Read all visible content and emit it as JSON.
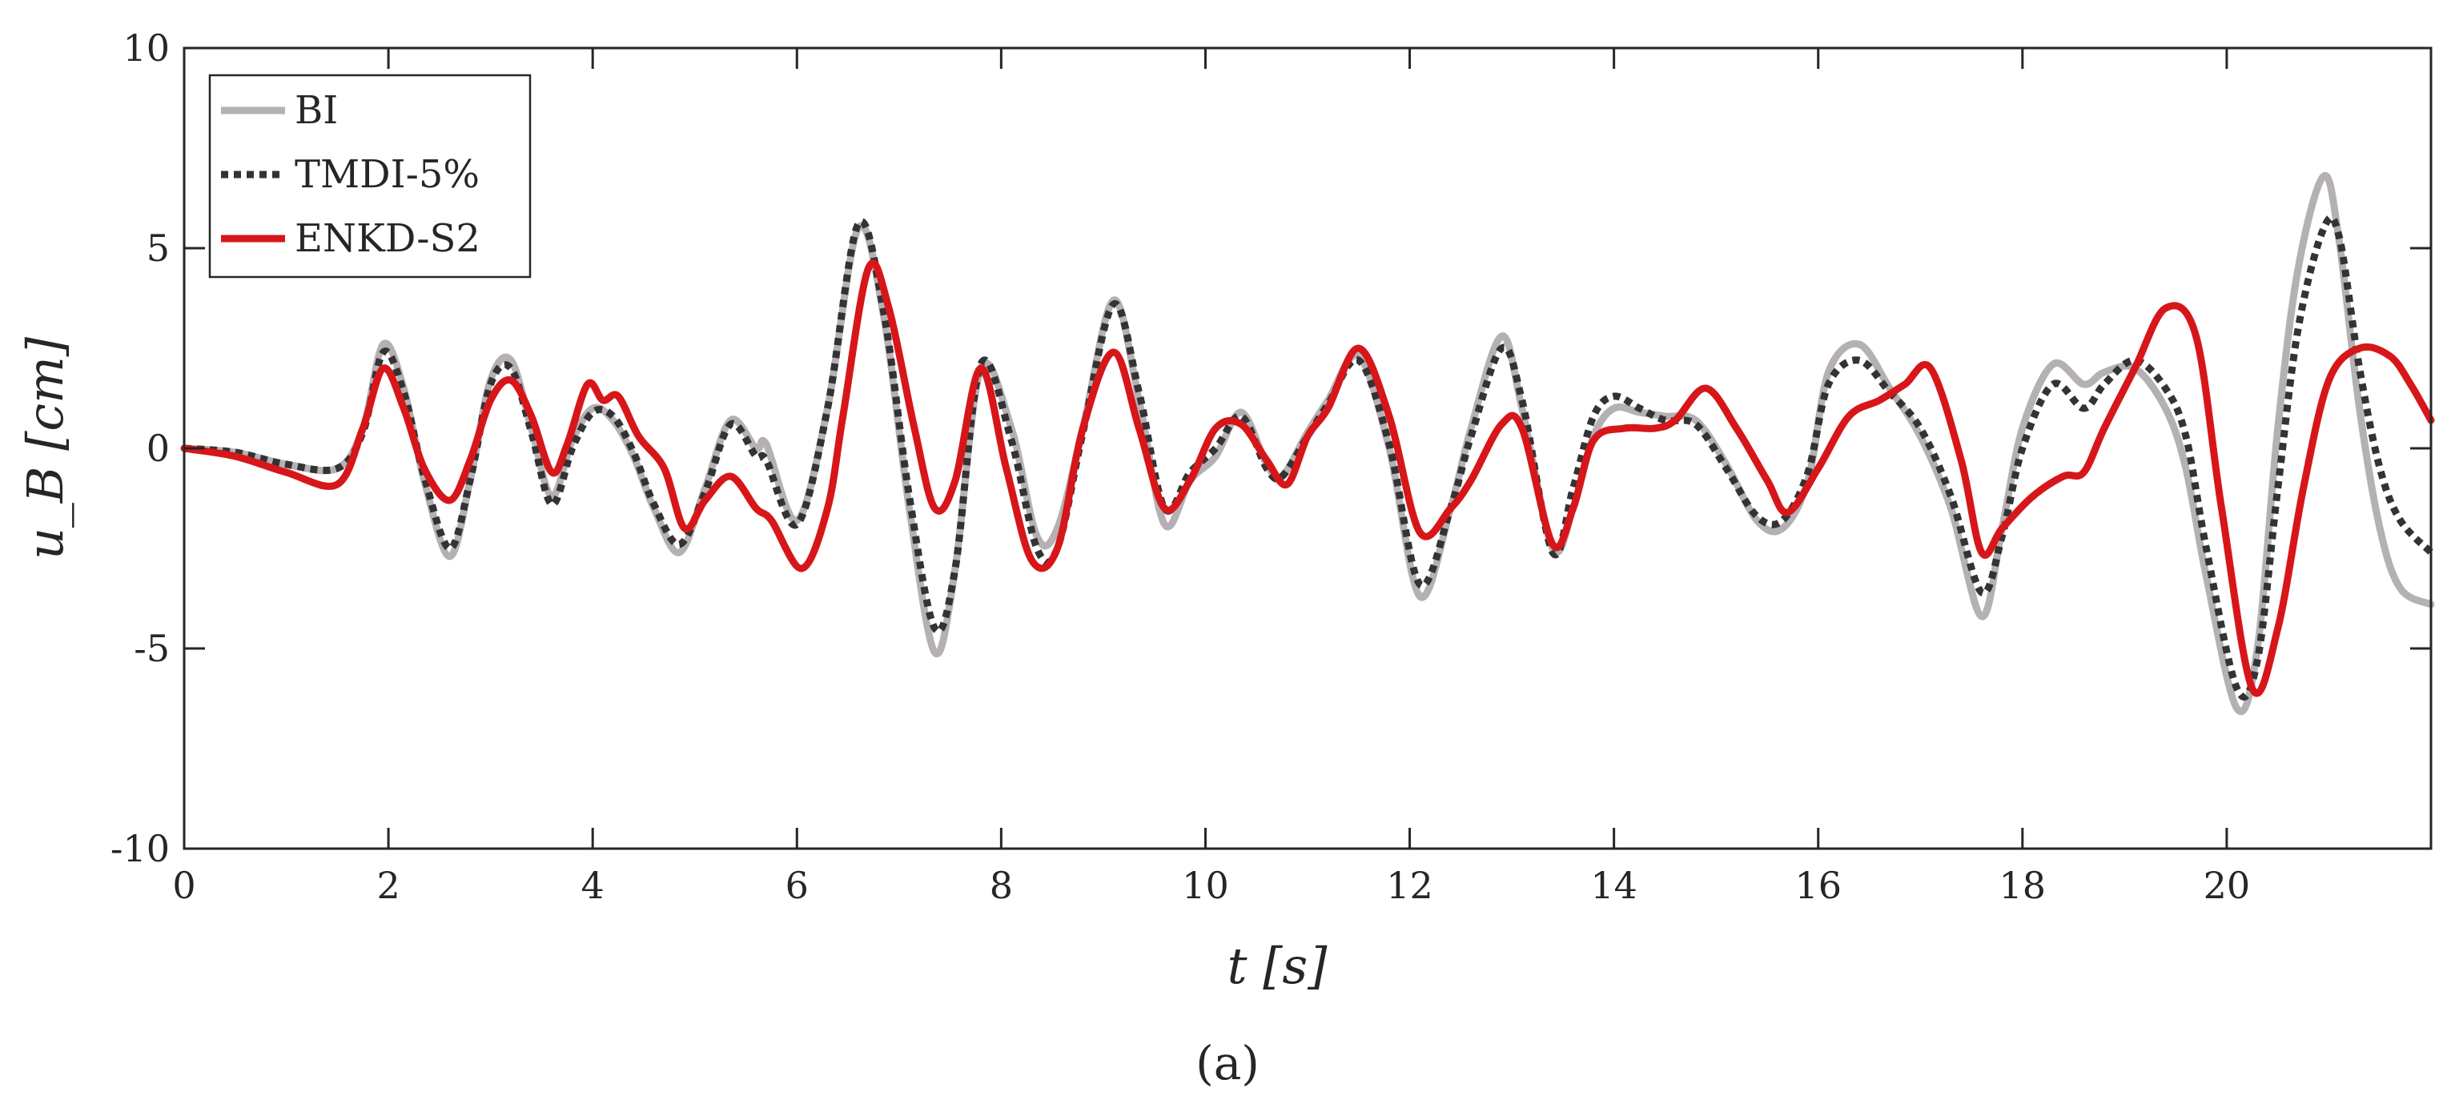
{
  "caption": "(a)",
  "chart_data": {
    "type": "line",
    "xlabel": "t [s]",
    "ylabel": "u_B [cm]",
    "xlim": [
      0,
      22
    ],
    "ylim": [
      -10,
      10
    ],
    "xticks": [
      0,
      2,
      4,
      6,
      8,
      10,
      12,
      14,
      16,
      18,
      20
    ],
    "yticks": [
      -10,
      -5,
      0,
      5,
      10
    ],
    "grid": false,
    "legend_position": "top-left",
    "series": [
      {
        "name": "BI",
        "style": "solid",
        "color": "#b5b0b3",
        "x": [
          0,
          0.5,
          1.0,
          1.5,
          1.75,
          1.95,
          2.15,
          2.35,
          2.6,
          2.8,
          3.0,
          3.2,
          3.4,
          3.6,
          3.8,
          4.0,
          4.2,
          4.4,
          4.6,
          4.85,
          5.1,
          5.35,
          5.6,
          5.7,
          6.0,
          6.3,
          6.6,
          6.85,
          7.1,
          7.35,
          7.55,
          7.8,
          8.1,
          8.35,
          8.55,
          8.8,
          9.1,
          9.35,
          9.6,
          9.85,
          10.1,
          10.35,
          10.6,
          10.75,
          11.0,
          11.2,
          11.5,
          11.8,
          12.1,
          12.4,
          12.6,
          12.9,
          13.1,
          13.4,
          13.6,
          13.8,
          14.0,
          14.25,
          14.5,
          14.8,
          15.1,
          15.4,
          15.65,
          15.9,
          16.1,
          16.4,
          16.7,
          17.0,
          17.3,
          17.6,
          17.8,
          18.0,
          18.3,
          18.6,
          18.8,
          19.1,
          19.4,
          19.6,
          19.8,
          20.1,
          20.3,
          20.5,
          20.7,
          20.95,
          21.1,
          21.3,
          21.5,
          21.7,
          22.0
        ],
        "y": [
          0,
          -0.1,
          -0.4,
          -0.5,
          0.5,
          2.6,
          1.5,
          -0.8,
          -2.7,
          -0.8,
          1.7,
          2.2,
          0.5,
          -1.2,
          0.2,
          1.0,
          0.7,
          -0.2,
          -1.5,
          -2.6,
          -1.0,
          0.7,
          0.0,
          0.1,
          -1.8,
          1.0,
          5.5,
          3.3,
          -1.5,
          -5.1,
          -3.0,
          2.0,
          0.5,
          -2.2,
          -2.0,
          0.5,
          3.7,
          1.2,
          -1.9,
          -0.8,
          -0.2,
          0.9,
          -0.4,
          -0.7,
          0.4,
          1.2,
          2.3,
          0.0,
          -3.7,
          -1.5,
          0.5,
          2.8,
          1.0,
          -2.5,
          -1.5,
          0.3,
          1.0,
          0.9,
          0.8,
          0.7,
          -0.4,
          -1.8,
          -2.0,
          -0.8,
          1.9,
          2.6,
          1.5,
          0.3,
          -1.5,
          -4.2,
          -2.0,
          0.5,
          2.1,
          1.6,
          1.9,
          2.0,
          1.0,
          -0.5,
          -3.2,
          -6.5,
          -5.0,
          0.5,
          4.5,
          6.8,
          5.2,
          1.0,
          -2.0,
          -3.5,
          -3.9
        ]
      },
      {
        "name": "TMDI-5%",
        "style": "dotted",
        "color": "#333333",
        "x": [
          0,
          0.5,
          1.0,
          1.5,
          1.75,
          1.95,
          2.15,
          2.35,
          2.6,
          2.8,
          3.0,
          3.2,
          3.4,
          3.6,
          3.8,
          4.0,
          4.2,
          4.4,
          4.6,
          4.85,
          5.1,
          5.35,
          5.6,
          5.7,
          6.0,
          6.3,
          6.6,
          6.85,
          7.1,
          7.35,
          7.55,
          7.8,
          8.1,
          8.35,
          8.55,
          8.8,
          9.1,
          9.35,
          9.6,
          9.85,
          10.1,
          10.35,
          10.6,
          10.75,
          11.0,
          11.2,
          11.5,
          11.8,
          12.1,
          12.4,
          12.6,
          12.9,
          13.1,
          13.4,
          13.6,
          13.8,
          14.0,
          14.25,
          14.5,
          14.8,
          15.1,
          15.4,
          15.65,
          15.9,
          16.1,
          16.4,
          16.7,
          17.0,
          17.3,
          17.6,
          17.8,
          18.0,
          18.3,
          18.6,
          18.8,
          19.1,
          19.4,
          19.6,
          19.8,
          20.1,
          20.3,
          20.5,
          20.7,
          20.95,
          21.1,
          21.3,
          21.5,
          21.7,
          22.0
        ],
        "y": [
          0,
          -0.1,
          -0.4,
          -0.5,
          0.4,
          2.4,
          1.4,
          -0.7,
          -2.5,
          -0.8,
          1.6,
          2.0,
          0.4,
          -1.4,
          0.0,
          0.9,
          0.8,
          -0.1,
          -1.4,
          -2.4,
          -1.1,
          0.6,
          -0.2,
          -0.3,
          -1.9,
          1.0,
          5.6,
          3.4,
          -1.2,
          -4.5,
          -3.0,
          2.1,
          0.2,
          -2.5,
          -2.5,
          0.4,
          3.6,
          1.4,
          -1.5,
          -0.6,
          0.0,
          0.8,
          -0.5,
          -0.7,
          0.3,
          1.1,
          2.2,
          0.1,
          -3.4,
          -1.5,
          0.3,
          2.5,
          1.2,
          -2.6,
          -1.0,
          0.8,
          1.3,
          1.0,
          0.7,
          0.6,
          -0.5,
          -1.7,
          -1.8,
          -0.6,
          1.6,
          2.2,
          1.4,
          0.5,
          -1.2,
          -3.6,
          -2.2,
          0.0,
          1.6,
          1.0,
          1.6,
          2.2,
          1.5,
          0.3,
          -2.5,
          -6.0,
          -5.3,
          -1.0,
          3.0,
          5.5,
          5.3,
          2.0,
          -0.5,
          -1.8,
          -2.6
        ]
      },
      {
        "name": "ENKD-S2",
        "style": "solid",
        "color": "#d7161a",
        "x": [
          0,
          0.5,
          1.0,
          1.5,
          1.75,
          1.95,
          2.15,
          2.35,
          2.6,
          2.8,
          3.0,
          3.2,
          3.4,
          3.6,
          3.75,
          3.95,
          4.1,
          4.25,
          4.45,
          4.7,
          4.9,
          5.1,
          5.35,
          5.6,
          5.75,
          6.05,
          6.3,
          6.45,
          6.7,
          6.9,
          7.15,
          7.35,
          7.55,
          7.8,
          8.05,
          8.3,
          8.55,
          8.8,
          9.1,
          9.35,
          9.6,
          9.85,
          10.1,
          10.35,
          10.6,
          10.8,
          11.0,
          11.2,
          11.5,
          11.8,
          12.1,
          12.4,
          12.6,
          12.9,
          13.1,
          13.4,
          13.6,
          13.8,
          14.1,
          14.4,
          14.6,
          14.9,
          15.2,
          15.5,
          15.7,
          16.0,
          16.3,
          16.6,
          16.85,
          17.1,
          17.4,
          17.6,
          17.8,
          18.1,
          18.4,
          18.6,
          18.8,
          19.1,
          19.4,
          19.7,
          19.95,
          20.25,
          20.5,
          20.75,
          21.0,
          21.3,
          21.6,
          21.8,
          22.0
        ],
        "y": [
          0,
          -0.2,
          -0.6,
          -0.9,
          0.5,
          2.0,
          1.0,
          -0.5,
          -1.3,
          -0.3,
          1.2,
          1.7,
          0.8,
          -0.6,
          0.1,
          1.6,
          1.2,
          1.3,
          0.3,
          -0.5,
          -2.0,
          -1.3,
          -0.7,
          -1.5,
          -1.8,
          -3.0,
          -1.5,
          0.8,
          4.5,
          3.5,
          0.5,
          -1.5,
          -0.8,
          2.0,
          -0.5,
          -2.8,
          -2.5,
          0.5,
          2.4,
          0.5,
          -1.5,
          -0.8,
          0.5,
          0.6,
          -0.3,
          -0.9,
          0.3,
          1.0,
          2.5,
          0.8,
          -2.1,
          -1.5,
          -0.8,
          0.6,
          0.5,
          -2.4,
          -1.5,
          0.2,
          0.5,
          0.5,
          0.7,
          1.5,
          0.5,
          -0.8,
          -1.6,
          -0.5,
          0.8,
          1.2,
          1.6,
          2.0,
          -0.3,
          -2.6,
          -2.0,
          -1.2,
          -0.7,
          -0.6,
          0.5,
          2.0,
          3.5,
          2.8,
          -1.5,
          -6.0,
          -4.5,
          -1.0,
          1.7,
          2.5,
          2.3,
          1.6,
          0.7
        ]
      }
    ]
  }
}
